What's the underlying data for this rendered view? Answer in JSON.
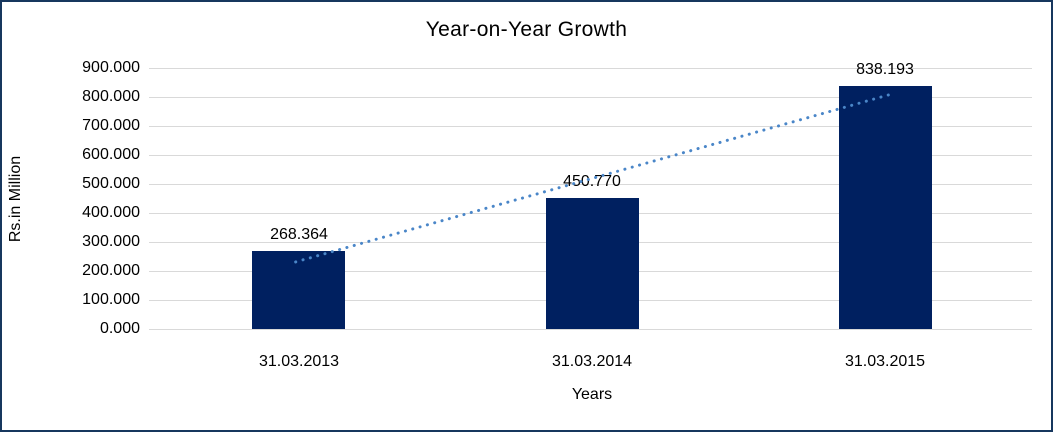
{
  "chart_data": {
    "type": "bar",
    "title": "Year-on-Year Growth",
    "xlabel": "Years",
    "ylabel": "Rs.in Million",
    "categories": [
      "31.03.2013",
      "31.03.2014",
      "31.03.2015"
    ],
    "values": [
      268.364,
      450.77,
      838.193
    ],
    "data_labels": [
      "268.364",
      "450.770",
      "838.193"
    ],
    "y_ticks": [
      "0.000",
      "100.000",
      "200.000",
      "300.000",
      "400.000",
      "500.000",
      "600.000",
      "700.000",
      "800.000",
      "900.000"
    ],
    "ylim": [
      0,
      900
    ],
    "grid": true,
    "legend": "none",
    "colors": {
      "bar": "#002060",
      "trendline": "#4a86c8",
      "gridline": "#d9d9d9",
      "text": "#000000",
      "frame_border": "#17375e",
      "background": "#ffffff"
    },
    "trendline": {
      "type": "linear",
      "style": "dotted"
    }
  }
}
